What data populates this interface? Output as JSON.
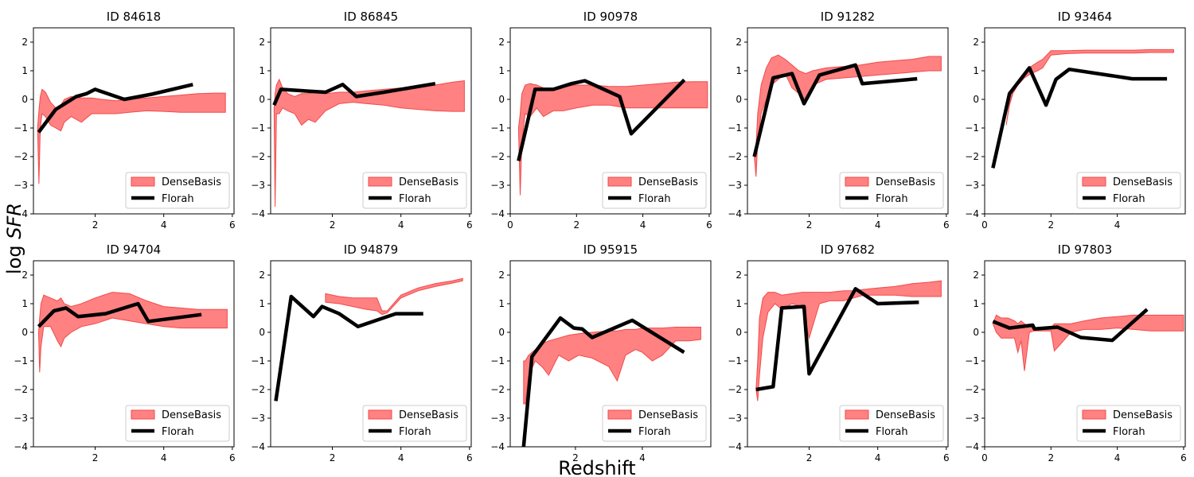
{
  "figure": {
    "xlabel": "Redshift",
    "ylabel_prefix": "log ",
    "ylabel_var": "SFR"
  },
  "colors": {
    "band": "#ff6b6b",
    "band_edge": "#f24a4a",
    "line": "#000000"
  },
  "chart_data": [
    {
      "type": "line",
      "title": "ID 84618",
      "xlim": [
        0.2,
        6.05
      ],
      "ylim": [
        -4,
        2.5
      ],
      "xticks": [
        2,
        4,
        6
      ],
      "yticks": [
        -4,
        -3,
        -2,
        -1,
        0,
        1,
        2
      ],
      "legend": [
        "DenseBasis",
        "Florah"
      ],
      "legend_loc": "lower right",
      "band": {
        "x": [
          0.32,
          0.36,
          0.4,
          0.45,
          0.55,
          0.7,
          0.85,
          1.0,
          1.1,
          1.3,
          1.6,
          1.9,
          2.2,
          2.6,
          3.0,
          3.5,
          4.0,
          4.5,
          5.0,
          5.5,
          5.8
        ],
        "lower": [
          -1.0,
          -2.95,
          -1.0,
          -0.5,
          -0.6,
          -0.9,
          -1.0,
          -1.1,
          -0.8,
          -0.6,
          -0.8,
          -0.5,
          -0.5,
          -0.5,
          -0.45,
          -0.4,
          -0.42,
          -0.45,
          -0.45,
          -0.45,
          -0.45
        ],
        "upper": [
          -1.0,
          -0.4,
          0.1,
          0.35,
          0.25,
          -0.1,
          -0.3,
          -0.2,
          0.0,
          0.1,
          0.05,
          0.05,
          0.0,
          -0.05,
          0.0,
          0.05,
          0.1,
          0.15,
          0.2,
          0.22,
          0.22
        ]
      },
      "series": [
        {
          "name": "Florah",
          "x": [
            0.35,
            0.85,
            1.45,
            1.75,
            2.0,
            2.85,
            3.65,
            4.85
          ],
          "y": [
            -1.15,
            -0.35,
            0.1,
            0.2,
            0.35,
            0.0,
            0.18,
            0.52
          ]
        }
      ]
    },
    {
      "type": "line",
      "title": "ID 86845",
      "xlim": [
        0.2,
        6.05
      ],
      "ylim": [
        -4,
        2.5
      ],
      "xticks": [
        2,
        4,
        6
      ],
      "yticks": [
        -4,
        -3,
        -2,
        -1,
        0,
        1,
        2
      ],
      "legend": [
        "DenseBasis",
        "Florah"
      ],
      "legend_loc": "lower right",
      "band": {
        "x": [
          0.3,
          0.33,
          0.37,
          0.45,
          0.55,
          0.7,
          0.9,
          1.1,
          1.3,
          1.5,
          1.8,
          2.2,
          2.6,
          3.0,
          3.5,
          4.0,
          4.5,
          5.0,
          5.5,
          5.85
        ],
        "lower": [
          -0.3,
          -3.75,
          -0.5,
          -0.5,
          -0.3,
          -0.4,
          -0.5,
          -0.9,
          -0.7,
          -0.8,
          -0.4,
          -0.15,
          -0.1,
          -0.15,
          -0.2,
          -0.3,
          -0.35,
          -0.4,
          -0.42,
          -0.42
        ],
        "upper": [
          -0.3,
          0.2,
          0.5,
          0.7,
          0.4,
          0.2,
          0.1,
          0.2,
          0.2,
          0.25,
          0.2,
          0.25,
          0.25,
          0.3,
          0.35,
          0.4,
          0.45,
          0.5,
          0.6,
          0.65
        ]
      },
      "series": [
        {
          "name": "Florah",
          "x": [
            0.3,
            0.5,
            1.8,
            2.3,
            2.7,
            3.5,
            5.0
          ],
          "y": [
            -0.2,
            0.35,
            0.25,
            0.52,
            0.1,
            0.25,
            0.55
          ]
        }
      ]
    },
    {
      "type": "line",
      "title": "ID 90978",
      "xlim": [
        0,
        6.05
      ],
      "ylim": [
        -4,
        2.5
      ],
      "xticks": [
        0,
        2,
        4,
        6
      ],
      "yticks": [
        -4,
        -3,
        -2,
        -1,
        0,
        1,
        2
      ],
      "legend": [
        "DenseBasis",
        "Florah"
      ],
      "legend_loc": "lower right",
      "band": {
        "x": [
          0.25,
          0.3,
          0.35,
          0.45,
          0.6,
          0.8,
          1.0,
          1.3,
          1.6,
          2.0,
          2.5,
          3.0,
          3.5,
          4.0,
          4.5,
          5.0,
          5.5,
          5.95
        ],
        "lower": [
          -1.0,
          -3.35,
          -1.5,
          -0.5,
          -0.6,
          -0.3,
          -0.6,
          -0.4,
          -0.4,
          -0.3,
          -0.2,
          -0.2,
          -0.3,
          -0.3,
          -0.3,
          -0.3,
          -0.3,
          -0.3
        ],
        "upper": [
          -1.0,
          -0.5,
          0.2,
          0.5,
          0.55,
          0.5,
          0.4,
          0.35,
          0.45,
          0.5,
          0.5,
          0.45,
          0.45,
          0.5,
          0.55,
          0.6,
          0.62,
          0.62
        ]
      },
      "series": [
        {
          "name": "Florah",
          "x": [
            0.25,
            0.75,
            1.3,
            1.85,
            2.25,
            3.3,
            3.65,
            5.25
          ],
          "y": [
            -2.15,
            0.35,
            0.35,
            0.55,
            0.65,
            0.1,
            -1.2,
            0.68
          ]
        }
      ]
    },
    {
      "type": "line",
      "title": "ID 91282",
      "xlim": [
        0.2,
        6.05
      ],
      "ylim": [
        -4,
        2.5
      ],
      "xticks": [
        2,
        4,
        6
      ],
      "yticks": [
        -4,
        -3,
        -2,
        -1,
        0,
        1,
        2
      ],
      "legend": [
        "DenseBasis",
        "Florah"
      ],
      "legend_loc": "lower right",
      "band": {
        "x": [
          0.4,
          0.45,
          0.5,
          0.6,
          0.75,
          0.9,
          1.1,
          1.3,
          1.5,
          1.7,
          1.9,
          2.1,
          2.5,
          3.0,
          3.5,
          4.0,
          4.5,
          5.0,
          5.5,
          5.85
        ],
        "lower": [
          -2.0,
          -2.7,
          -1.5,
          -0.5,
          0.0,
          0.5,
          0.7,
          0.9,
          0.4,
          0.2,
          0.0,
          0.5,
          0.7,
          0.75,
          0.8,
          0.85,
          0.9,
          0.95,
          1.0,
          1.0
        ],
        "upper": [
          -2.0,
          -1.6,
          -0.5,
          0.5,
          1.1,
          1.45,
          1.55,
          1.4,
          1.2,
          1.0,
          0.9,
          1.0,
          1.1,
          1.15,
          1.2,
          1.3,
          1.35,
          1.4,
          1.5,
          1.5
        ]
      },
      "series": [
        {
          "name": "Florah",
          "x": [
            0.4,
            0.95,
            1.5,
            1.85,
            2.3,
            3.35,
            3.55,
            5.15
          ],
          "y": [
            -2.0,
            0.75,
            0.9,
            -0.15,
            0.85,
            1.2,
            0.55,
            0.72
          ]
        }
      ]
    },
    {
      "type": "line",
      "title": "ID 93464",
      "xlim": [
        0,
        6.05
      ],
      "ylim": [
        -4,
        2.5
      ],
      "xticks": [
        0,
        2,
        4
      ],
      "yticks": [
        -4,
        -3,
        -2,
        -1,
        0,
        1,
        2
      ],
      "legend": [
        "DenseBasis",
        "Florah"
      ],
      "legend_loc": "lower right",
      "band": {
        "x": [
          0.65,
          0.75,
          0.85,
          1.0,
          1.2,
          1.4,
          1.6,
          1.75,
          2.0,
          2.5,
          3.0,
          3.5,
          4.0,
          4.5,
          5.0,
          5.5,
          5.7
        ],
        "lower": [
          -0.9,
          -0.2,
          0.2,
          0.5,
          0.75,
          0.9,
          1.0,
          1.1,
          1.55,
          1.6,
          1.62,
          1.62,
          1.62,
          1.62,
          1.64,
          1.64,
          1.64
        ],
        "upper": [
          -0.9,
          -0.1,
          0.3,
          0.65,
          0.9,
          1.15,
          1.3,
          1.4,
          1.7,
          1.7,
          1.72,
          1.72,
          1.72,
          1.72,
          1.74,
          1.74,
          1.74
        ]
      },
      "series": [
        {
          "name": "Florah",
          "x": [
            0.25,
            0.75,
            1.35,
            1.85,
            2.15,
            2.55,
            4.45,
            5.5
          ],
          "y": [
            -2.4,
            0.2,
            1.1,
            -0.2,
            0.7,
            1.05,
            0.72,
            0.72
          ]
        }
      ]
    },
    {
      "type": "line",
      "title": "ID 94704",
      "xlim": [
        0.2,
        6.05
      ],
      "ylim": [
        -4,
        2.5
      ],
      "xticks": [
        2,
        4,
        6
      ],
      "yticks": [
        -4,
        -3,
        -2,
        -1,
        0,
        1,
        2
      ],
      "legend": [
        "DenseBasis",
        "Florah"
      ],
      "legend_loc": "lower right",
      "band": {
        "x": [
          0.35,
          0.38,
          0.42,
          0.5,
          0.7,
          0.9,
          1.0,
          1.1,
          1.3,
          1.6,
          2.0,
          2.5,
          3.0,
          3.5,
          4.0,
          4.5,
          5.0,
          5.5,
          5.85
        ],
        "lower": [
          0.0,
          -1.4,
          -0.5,
          0.2,
          0.2,
          -0.3,
          -0.5,
          -0.2,
          0.0,
          0.2,
          0.3,
          0.5,
          0.4,
          0.3,
          0.2,
          0.15,
          0.15,
          0.15,
          0.15
        ],
        "upper": [
          0.0,
          0.5,
          1.0,
          1.3,
          1.2,
          1.1,
          1.2,
          1.0,
          0.9,
          1.0,
          1.2,
          1.4,
          1.35,
          1.1,
          0.9,
          0.85,
          0.8,
          0.8,
          0.8
        ]
      },
      "series": [
        {
          "name": "Florah",
          "x": [
            0.35,
            0.8,
            1.15,
            1.5,
            2.3,
            3.25,
            3.55,
            5.1
          ],
          "y": [
            0.2,
            0.75,
            0.85,
            0.55,
            0.65,
            1.0,
            0.38,
            0.62
          ]
        }
      ]
    },
    {
      "type": "line",
      "title": "ID 94879",
      "xlim": [
        0.2,
        6.05
      ],
      "ylim": [
        -4,
        2.5
      ],
      "xticks": [
        2,
        4,
        6
      ],
      "yticks": [
        -4,
        -3,
        -2,
        -1,
        0,
        1,
        2
      ],
      "legend": [
        "DenseBasis",
        "Florah"
      ],
      "legend_loc": "lower right",
      "band": {
        "x": [
          1.8,
          2.2,
          2.6,
          3.0,
          3.3,
          3.45,
          3.6,
          4.0,
          4.5,
          5.0,
          5.5,
          5.8
        ],
        "lower": [
          1.05,
          1.0,
          0.9,
          0.8,
          0.75,
          0.62,
          0.68,
          1.2,
          1.45,
          1.6,
          1.72,
          1.8
        ],
        "upper": [
          1.35,
          1.25,
          1.2,
          1.2,
          1.2,
          0.75,
          0.75,
          1.3,
          1.55,
          1.7,
          1.8,
          1.88
        ]
      },
      "series": [
        {
          "name": "Florah",
          "x": [
            0.35,
            0.8,
            1.45,
            1.7,
            2.2,
            2.75,
            3.85,
            4.65
          ],
          "y": [
            -2.4,
            1.25,
            0.55,
            0.9,
            0.65,
            0.2,
            0.65,
            0.65
          ]
        }
      ]
    },
    {
      "type": "line",
      "title": "ID 95915",
      "xlim": [
        0.05,
        6.05
      ],
      "ylim": [
        -4,
        2.5
      ],
      "xticks": [
        2,
        4
      ],
      "yticks": [
        -4,
        -3,
        -2,
        -1,
        0,
        1,
        2
      ],
      "legend": [
        "DenseBasis",
        "Florah"
      ],
      "legend_loc": "lower right",
      "band": {
        "x": [
          0.45,
          0.5,
          0.6,
          0.8,
          1.0,
          1.2,
          1.5,
          1.8,
          2.1,
          2.5,
          3.0,
          3.25,
          3.5,
          3.8,
          4.0,
          4.3,
          4.6,
          5.0,
          5.4,
          5.75
        ],
        "lower": [
          -2.5,
          -2.5,
          -1.5,
          -1.0,
          -1.2,
          -1.5,
          -0.8,
          -1.0,
          -0.8,
          -0.9,
          -1.2,
          -1.7,
          -0.8,
          -0.6,
          -0.7,
          -1.0,
          -0.8,
          -0.3,
          -0.3,
          -0.25
        ],
        "upper": [
          -1.0,
          -1.0,
          -0.8,
          -0.6,
          -0.4,
          -0.3,
          -0.2,
          -0.1,
          -0.05,
          0.0,
          0.05,
          0.05,
          0.1,
          0.1,
          0.15,
          0.15,
          0.15,
          0.18,
          0.18,
          0.18
        ]
      },
      "series": [
        {
          "name": "Florah",
          "x": [
            0.45,
            0.7,
            1.55,
            1.95,
            2.2,
            2.5,
            3.7,
            5.25
          ],
          "y": [
            -4.0,
            -0.85,
            0.5,
            0.15,
            0.12,
            -0.18,
            0.42,
            -0.7
          ]
        }
      ]
    },
    {
      "type": "line",
      "title": "ID 97682",
      "xlim": [
        0.2,
        6.05
      ],
      "ylim": [
        -4,
        2.5
      ],
      "xticks": [
        2,
        4,
        6
      ],
      "yticks": [
        -4,
        -3,
        -2,
        -1,
        0,
        1,
        2
      ],
      "legend": [
        "DenseBasis",
        "Florah"
      ],
      "legend_loc": "lower right",
      "band": {
        "x": [
          0.45,
          0.5,
          0.55,
          0.65,
          0.8,
          1.0,
          1.2,
          1.5,
          1.8,
          2.0,
          2.3,
          2.6,
          3.0,
          3.3,
          3.6,
          4.0,
          4.5,
          5.0,
          5.5,
          5.85
        ],
        "lower": [
          -2.0,
          -2.4,
          -1.5,
          -0.2,
          0.7,
          1.0,
          0.8,
          1.0,
          0.9,
          -0.2,
          1.0,
          1.1,
          1.1,
          1.2,
          1.3,
          1.3,
          1.3,
          1.25,
          1.25,
          1.25
        ],
        "upper": [
          -2.0,
          -1.0,
          0.5,
          1.2,
          1.4,
          1.4,
          1.3,
          1.35,
          1.4,
          1.4,
          1.4,
          1.4,
          1.45,
          1.45,
          1.5,
          1.55,
          1.6,
          1.7,
          1.75,
          1.8
        ]
      },
      "series": [
        {
          "name": "Florah",
          "x": [
            0.45,
            0.95,
            1.2,
            1.85,
            2.0,
            3.35,
            4.0,
            5.2
          ],
          "y": [
            -2.0,
            -1.9,
            0.85,
            0.9,
            -1.45,
            1.52,
            1.0,
            1.05
          ]
        }
      ]
    },
    {
      "type": "line",
      "title": "ID 97803",
      "xlim": [
        0,
        6.05
      ],
      "ylim": [
        -4,
        2.5
      ],
      "xticks": [
        0,
        2,
        4,
        6
      ],
      "yticks": [
        -4,
        -3,
        -2,
        -1,
        0,
        1,
        2
      ],
      "legend": [
        "DenseBasis",
        "Florah"
      ],
      "legend_loc": "lower right",
      "band": {
        "x": [
          0.25,
          0.35,
          0.5,
          0.7,
          0.9,
          1.0,
          1.1,
          1.2,
          1.35,
          1.5,
          1.8,
          2.0,
          2.1,
          2.3,
          2.6,
          3.0,
          3.5,
          4.0,
          4.5,
          5.0,
          5.5,
          6.0
        ],
        "lower": [
          0.3,
          0.0,
          -0.2,
          -0.2,
          -0.2,
          -0.7,
          -0.3,
          -1.35,
          0.0,
          0.05,
          0.05,
          0.05,
          -0.65,
          -0.4,
          0.0,
          0.1,
          0.1,
          0.15,
          0.1,
          0.05,
          0.05,
          0.05
        ],
        "upper": [
          0.3,
          0.6,
          0.5,
          0.5,
          0.4,
          0.3,
          0.4,
          0.3,
          0.2,
          0.15,
          0.15,
          0.15,
          0.3,
          0.3,
          0.3,
          0.4,
          0.5,
          0.55,
          0.6,
          0.6,
          0.6,
          0.6
        ]
      },
      "series": [
        {
          "name": "Florah",
          "x": [
            0.25,
            0.75,
            1.45,
            1.5,
            2.2,
            2.9,
            3.85,
            4.9
          ],
          "y": [
            0.38,
            0.15,
            0.25,
            0.12,
            0.18,
            -0.18,
            -0.28,
            0.8
          ]
        }
      ]
    }
  ]
}
